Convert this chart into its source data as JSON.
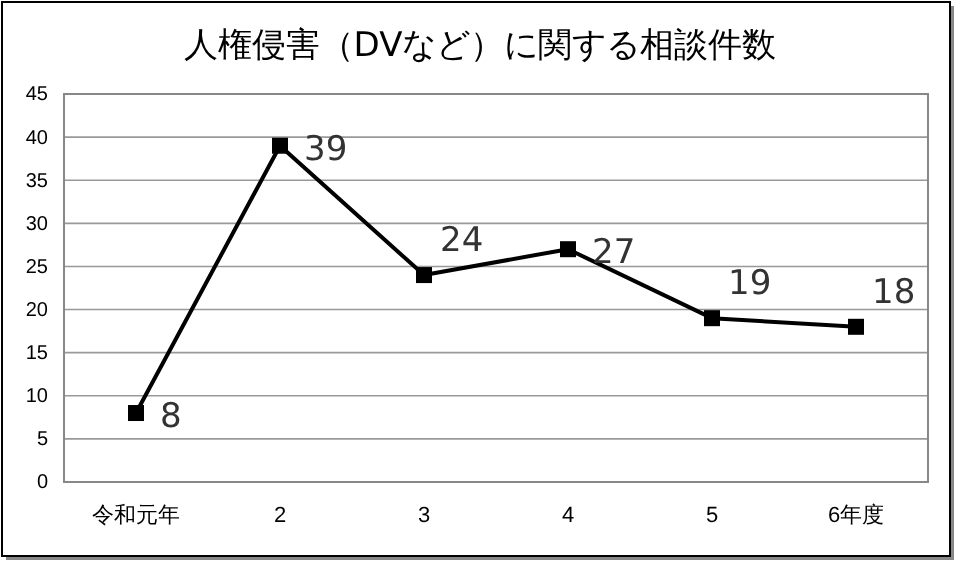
{
  "chart_data": {
    "type": "line",
    "title": "人権侵害（DVなど）に関する相談件数",
    "categories": [
      "令和元年",
      "2",
      "3",
      "4",
      "5",
      "6年度"
    ],
    "series": [
      {
        "color": "#000000",
        "values": [
          8,
          39,
          24,
          27,
          19,
          18
        ]
      }
    ],
    "ylim": [
      0,
      45
    ],
    "yticks": [
      0,
      5,
      10,
      15,
      20,
      25,
      30,
      35,
      40,
      45
    ],
    "grid": "y",
    "marker": "square",
    "line_style": "solid",
    "data_labels": true
  }
}
